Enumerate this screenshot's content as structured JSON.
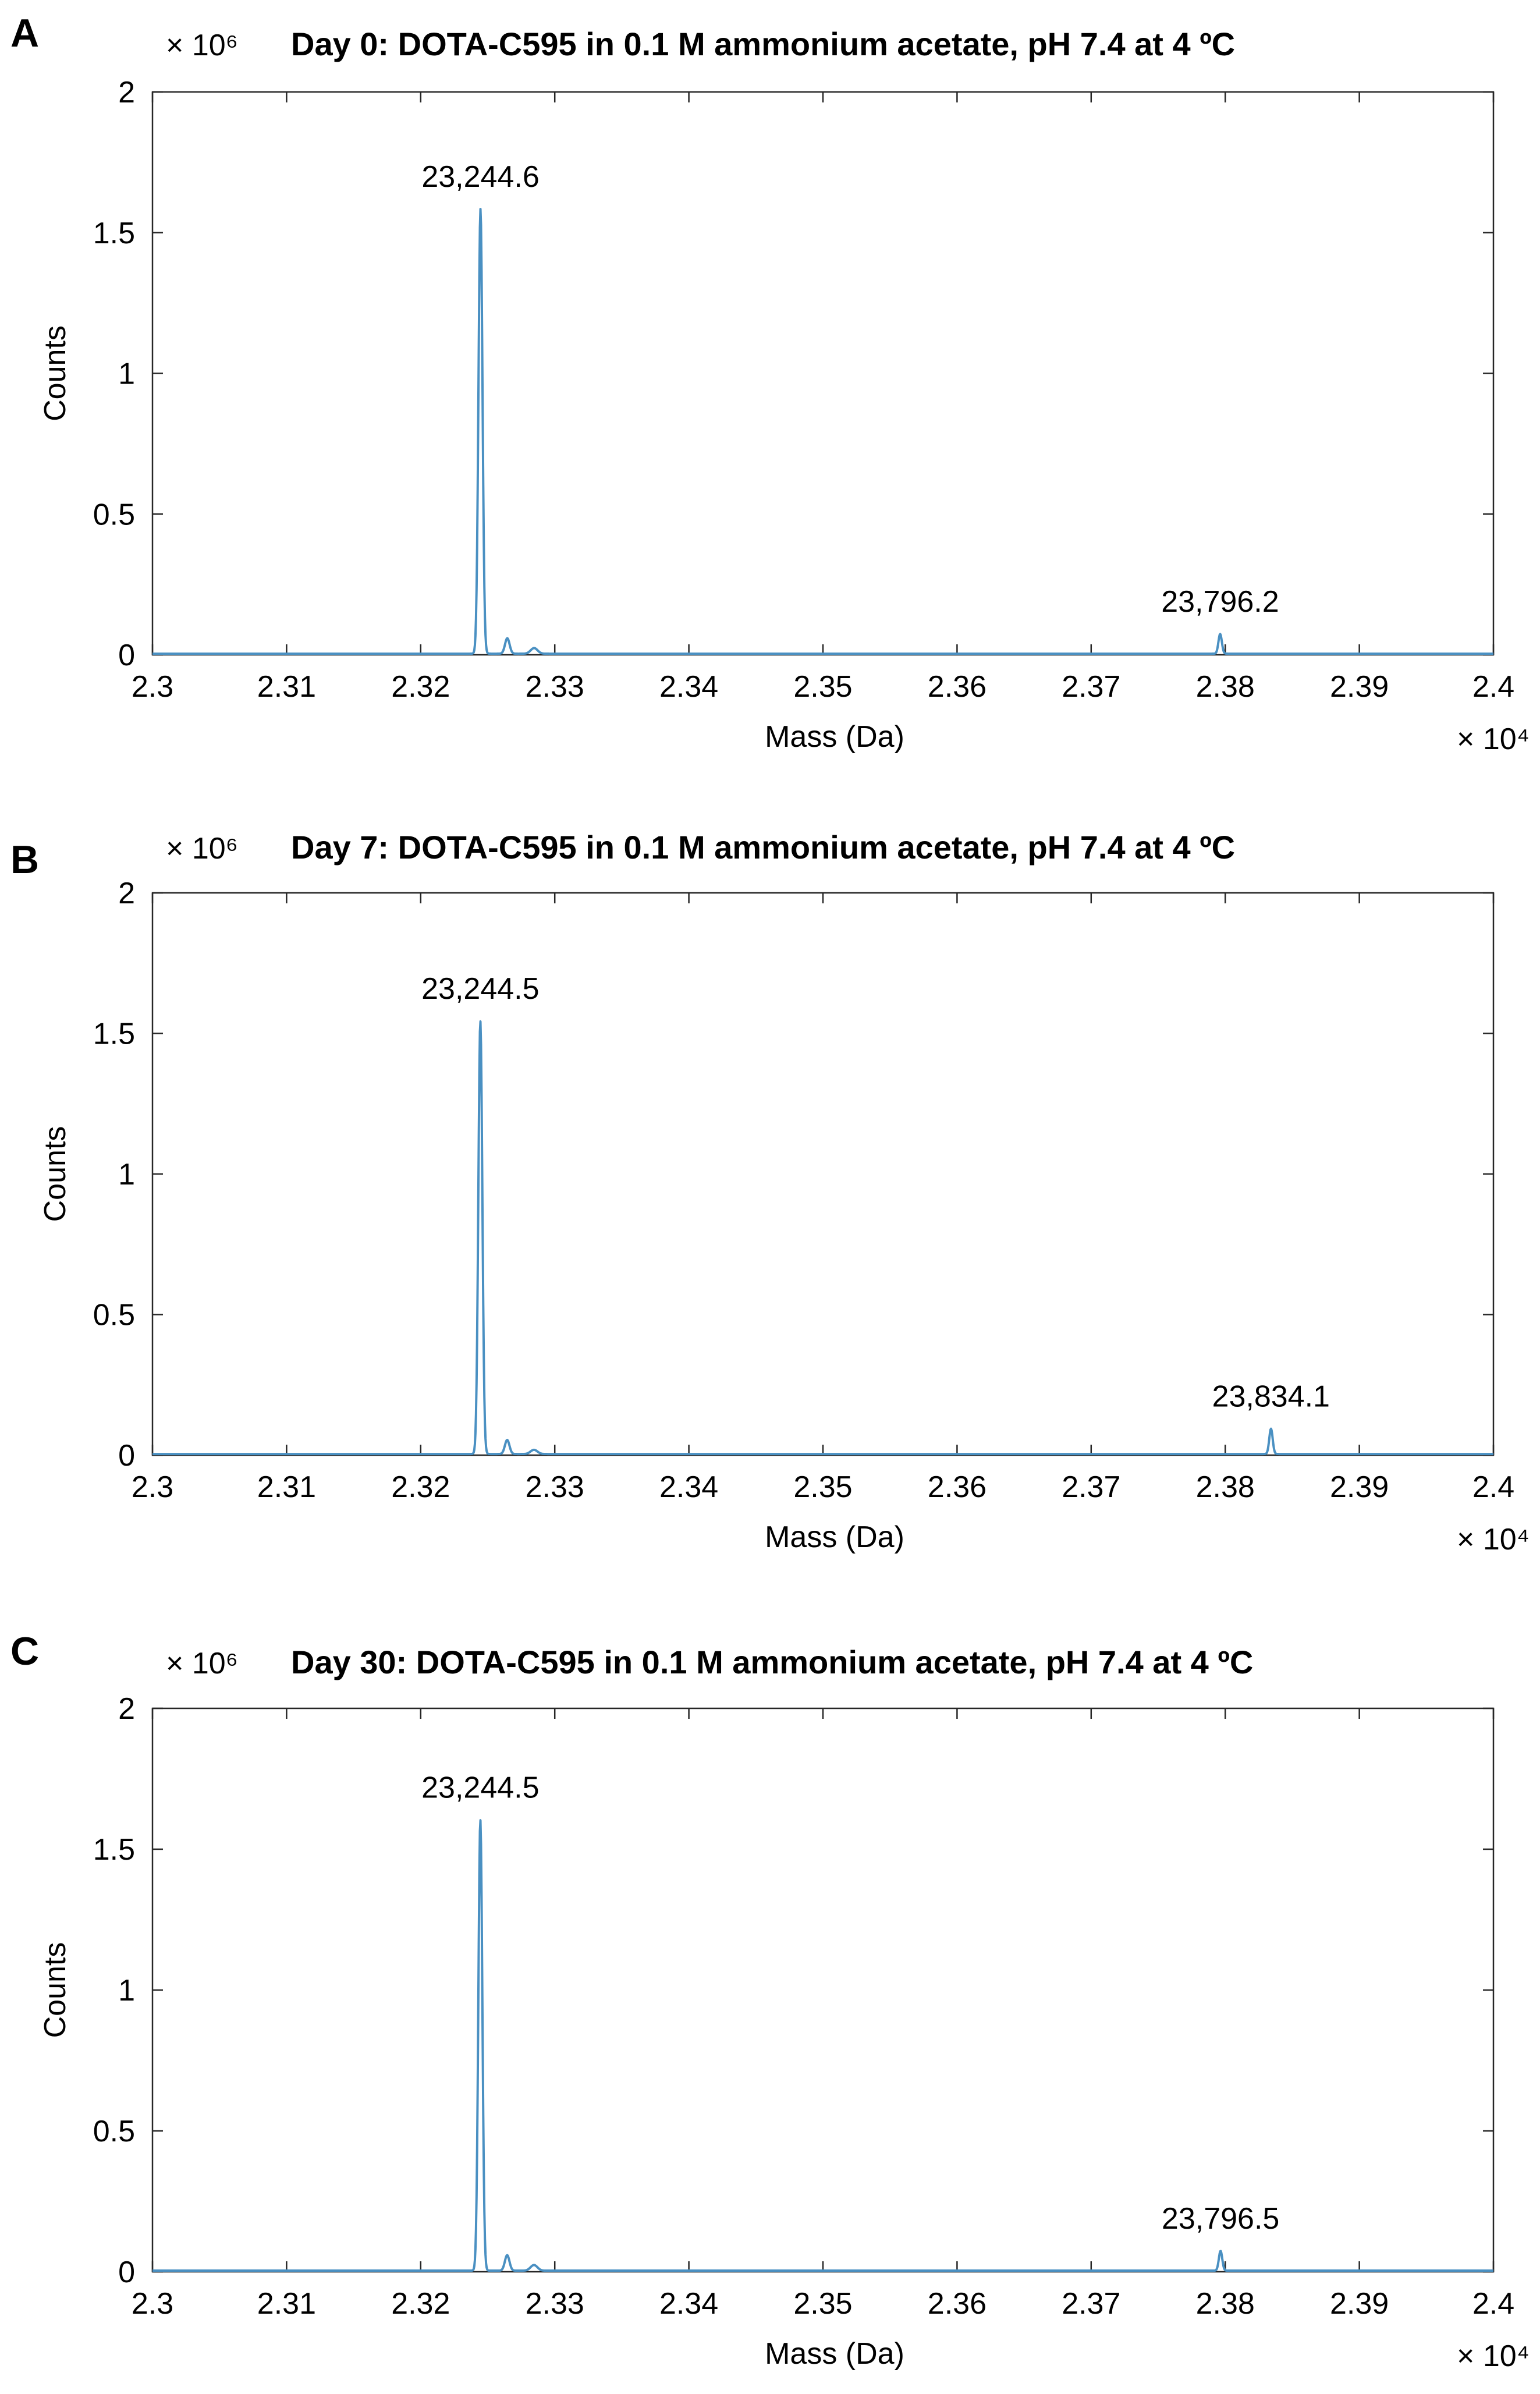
{
  "chart_data": [
    {
      "panel": "A",
      "type": "line",
      "title": "Day 0: DOTA-C595 in 0.1 M ammonium acetate, pH 7.4 at 4 ºC",
      "xlabel": "Mass (Da)",
      "ylabel": "Counts",
      "x_multiplier": "× 10⁴",
      "y_multiplier": "× 10⁶",
      "xlim": [
        2.3,
        2.4
      ],
      "ylim": [
        0,
        2
      ],
      "x_ticks": [
        "2.3",
        "2.31",
        "2.32",
        "2.33",
        "2.34",
        "2.35",
        "2.36",
        "2.37",
        "2.38",
        "2.39",
        "2.4"
      ],
      "y_ticks": [
        "0",
        "0.5",
        "1",
        "1.5",
        "2"
      ],
      "series_color": "#4a90c2",
      "peaks": [
        {
          "x": 2.32446,
          "y": 1.58,
          "label": "23,244.6",
          "width": 0.00035
        },
        {
          "x": 2.32646,
          "y": 0.055,
          "label": "",
          "width": 0.0004
        },
        {
          "x": 2.32846,
          "y": 0.02,
          "label": "",
          "width": 0.0006
        },
        {
          "x": 2.37962,
          "y": 0.07,
          "label": "23,796.2",
          "width": 0.0003
        }
      ]
    },
    {
      "panel": "B",
      "type": "line",
      "title": "Day 7: DOTA-C595 in 0.1 M ammonium acetate, pH 7.4 at 4 ºC",
      "xlabel": "Mass (Da)",
      "ylabel": "Counts",
      "x_multiplier": "× 10⁴",
      "y_multiplier": "× 10⁶",
      "xlim": [
        2.3,
        2.4
      ],
      "ylim": [
        0,
        2
      ],
      "x_ticks": [
        "2.3",
        "2.31",
        "2.32",
        "2.33",
        "2.34",
        "2.35",
        "2.36",
        "2.37",
        "2.38",
        "2.39",
        "2.4"
      ],
      "y_ticks": [
        "0",
        "0.5",
        "1",
        "1.5",
        "2"
      ],
      "series_color": "#4a90c2",
      "peaks": [
        {
          "x": 2.32445,
          "y": 1.54,
          "label": "23,244.5",
          "width": 0.00035
        },
        {
          "x": 2.32645,
          "y": 0.05,
          "label": "",
          "width": 0.0004
        },
        {
          "x": 2.32845,
          "y": 0.015,
          "label": "",
          "width": 0.0006
        },
        {
          "x": 2.38341,
          "y": 0.09,
          "label": "23,834.1",
          "width": 0.0003
        }
      ]
    },
    {
      "panel": "C",
      "type": "line",
      "title": "Day 30: DOTA-C595 in 0.1 M ammonium acetate, pH 7.4 at 4 ºC",
      "xlabel": "Mass (Da)",
      "ylabel": "Counts",
      "x_multiplier": "× 10⁴",
      "y_multiplier": "× 10⁶",
      "xlim": [
        2.3,
        2.4
      ],
      "ylim": [
        0,
        2
      ],
      "x_ticks": [
        "2.3",
        "2.31",
        "2.32",
        "2.33",
        "2.34",
        "2.35",
        "2.36",
        "2.37",
        "2.38",
        "2.39",
        "2.4"
      ],
      "y_ticks": [
        "0",
        "0.5",
        "1",
        "1.5",
        "2"
      ],
      "series_color": "#4a90c2",
      "peaks": [
        {
          "x": 2.32445,
          "y": 1.6,
          "label": "23,244.5",
          "width": 0.00035
        },
        {
          "x": 2.32645,
          "y": 0.055,
          "label": "",
          "width": 0.0004
        },
        {
          "x": 2.32845,
          "y": 0.02,
          "label": "",
          "width": 0.0006
        },
        {
          "x": 2.37965,
          "y": 0.07,
          "label": "23,796.5",
          "width": 0.0003
        }
      ]
    }
  ]
}
